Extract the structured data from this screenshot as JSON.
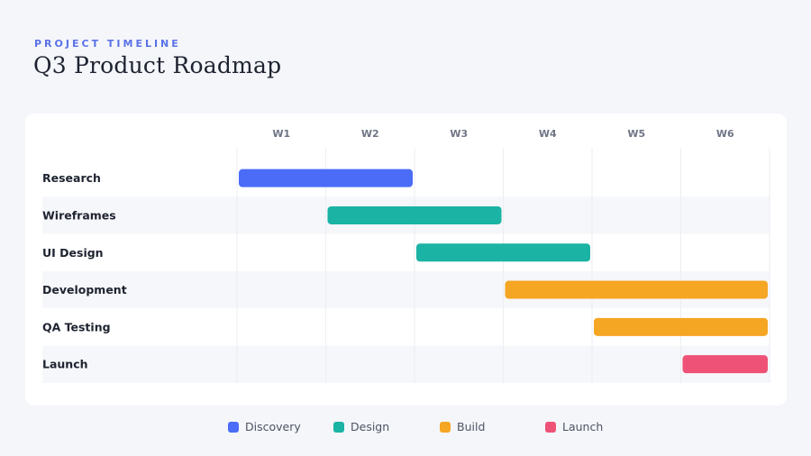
{
  "header": {
    "eyebrow": "PROJECT TIMELINE",
    "title": "Q3 Product Roadmap"
  },
  "chart_data": {
    "type": "gantt",
    "weeks": [
      "W1",
      "W2",
      "W3",
      "W4",
      "W5",
      "W6"
    ],
    "tasks": [
      {
        "name": "Research",
        "start": 0,
        "end": 2,
        "phase": "Discovery"
      },
      {
        "name": "Wireframes",
        "start": 1,
        "end": 3,
        "phase": "Design"
      },
      {
        "name": "UI Design",
        "start": 2,
        "end": 4,
        "phase": "Design"
      },
      {
        "name": "Development",
        "start": 3,
        "end": 6,
        "phase": "Build"
      },
      {
        "name": "QA Testing",
        "start": 4,
        "end": 6,
        "phase": "Build"
      },
      {
        "name": "Launch",
        "start": 5,
        "end": 6,
        "phase": "Launch"
      }
    ],
    "legend": [
      {
        "name": "Discovery",
        "color": "#4a6cf7"
      },
      {
        "name": "Design",
        "color": "#1bb3a4"
      },
      {
        "name": "Build",
        "color": "#f5a623"
      },
      {
        "name": "Launch",
        "color": "#ef5277"
      }
    ],
    "grid": true,
    "legend_position": "bottom"
  }
}
